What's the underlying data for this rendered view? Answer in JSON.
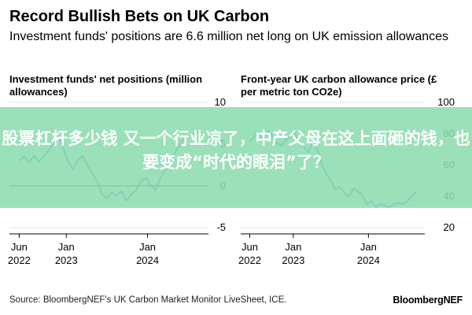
{
  "header": {
    "title": "Record Bullish Bets on UK Carbon",
    "subtitle": "Investment funds' positions are 6.6 million net long on UK emission allowances"
  },
  "footer": {
    "source": "Source: BloombergNEF's UK Carbon Market Monitor LiveSheet, ICE.",
    "brand": "BloombergNEF"
  },
  "overlay": {
    "banner_text": "股票杠杆多少钱 又一个行业凉了，中产父母在这上面砸的钱，也要变成“时代的眼泪”了？"
  },
  "colors": {
    "series": "#1560f2",
    "grid": "#e4e4e4",
    "zero_line": "#000000",
    "overlay": "#8cdcaf"
  },
  "chart_data": [
    {
      "type": "line",
      "title": "Investment funds' net positions (million allowances)",
      "ylim": [
        -5,
        10
      ],
      "yticks": [
        "10",
        "5",
        "0",
        "-5"
      ],
      "ytick_values": [
        10,
        5,
        0,
        -5
      ],
      "xticks": [
        "Jun\n2022",
        "Jan\n2023",
        "Jan\n2024"
      ],
      "xtick_values": [
        2022.42,
        2023.0,
        2024.0
      ],
      "zero_line": true,
      "series": [
        {
          "x": [
            2022.42,
            2022.48,
            2022.54,
            2022.6,
            2022.66,
            2022.72,
            2022.78,
            2022.84,
            2022.9,
            2022.96,
            2023.02,
            2023.08,
            2023.14,
            2023.2,
            2023.26,
            2023.32,
            2023.38,
            2023.44,
            2023.5,
            2023.56,
            2023.62,
            2023.68,
            2023.74,
            2023.8,
            2023.86,
            2023.92,
            2023.98,
            2024.04,
            2024.1,
            2024.16,
            2024.22,
            2024.28,
            2024.34,
            2024.4,
            2024.46,
            2024.52,
            2024.58,
            2024.64
          ],
          "y": [
            3.0,
            3.5,
            2.8,
            3.6,
            2.9,
            3.5,
            4.2,
            5.0,
            6.0,
            4.5,
            3.0,
            2.0,
            3.0,
            3.6,
            2.5,
            1.5,
            0.5,
            -1.0,
            -1.5,
            -0.8,
            -1.2,
            -0.6,
            -1.8,
            -1.0,
            -0.5,
            0.5,
            1.0,
            0.0,
            -0.5,
            1.0,
            2.0,
            3.0,
            4.0,
            5.0,
            5.8,
            6.0,
            6.3,
            6.6
          ]
        }
      ]
    },
    {
      "type": "line",
      "title": "Front-year UK carbon allowance price (£ per metric ton CO2e)",
      "ylim": [
        20,
        100
      ],
      "yticks": [
        "100",
        "80",
        "60",
        "40",
        "20"
      ],
      "ytick_values": [
        100,
        80,
        60,
        40,
        20
      ],
      "xticks": [
        "Jun\n2022",
        "Jan\n2023",
        "Jan\n2024"
      ],
      "xtick_values": [
        2022.42,
        2023.0,
        2024.0
      ],
      "series": [
        {
          "x": [
            2022.42,
            2022.48,
            2022.54,
            2022.6,
            2022.66,
            2022.72,
            2022.78,
            2022.84,
            2022.9,
            2022.96,
            2023.02,
            2023.08,
            2023.14,
            2023.2,
            2023.26,
            2023.32,
            2023.38,
            2023.44,
            2023.5,
            2023.56,
            2023.62,
            2023.68,
            2023.74,
            2023.8,
            2023.86,
            2023.92,
            2023.98,
            2024.04,
            2024.1,
            2024.16,
            2024.22,
            2024.28,
            2024.34,
            2024.4,
            2024.46,
            2024.52,
            2024.58,
            2024.64
          ],
          "y": [
            75,
            78,
            80,
            76,
            82,
            79,
            74,
            72,
            76,
            78,
            80,
            74,
            72,
            68,
            75,
            70,
            60,
            54,
            50,
            44,
            46,
            42,
            40,
            45,
            43,
            41,
            35,
            37,
            33,
            35,
            34,
            33,
            35,
            36,
            35,
            37,
            40,
            43
          ]
        }
      ]
    }
  ]
}
